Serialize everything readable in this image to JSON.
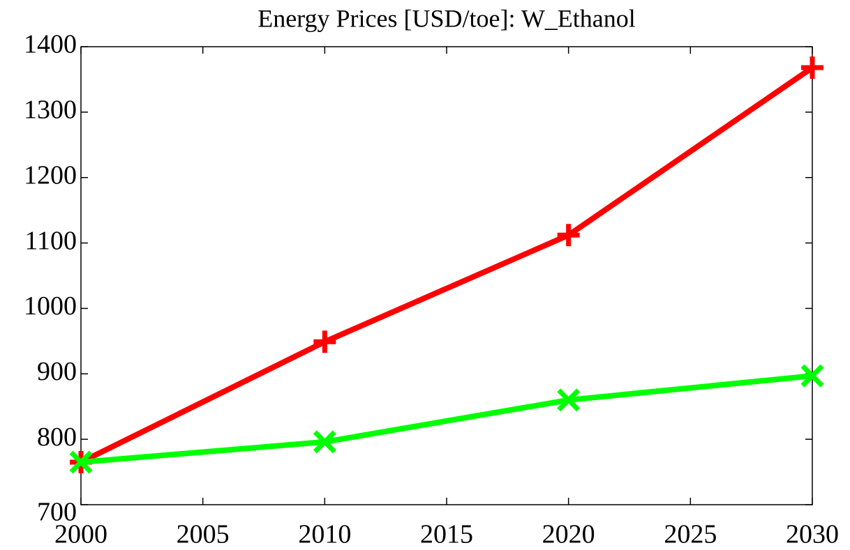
{
  "chart_data": {
    "type": "line",
    "title": "Energy Prices [USD/toe]:  W_Ethanol",
    "x": [
      2000,
      2010,
      2020,
      2030
    ],
    "series": [
      {
        "color": "#ff0000",
        "marker": "+",
        "values": [
          765,
          949,
          1112,
          1368
        ]
      },
      {
        "color": "#00ff00",
        "marker": "x",
        "values": [
          765,
          796,
          860,
          897
        ]
      }
    ],
    "xlim": [
      2000,
      2030
    ],
    "xticks": [
      2000,
      2005,
      2010,
      2015,
      2020,
      2025,
      2030
    ],
    "ylim": [
      700,
      1400
    ],
    "yticks": [
      700,
      800,
      900,
      1000,
      1100,
      1200,
      1300,
      1400
    ],
    "grid": false
  }
}
